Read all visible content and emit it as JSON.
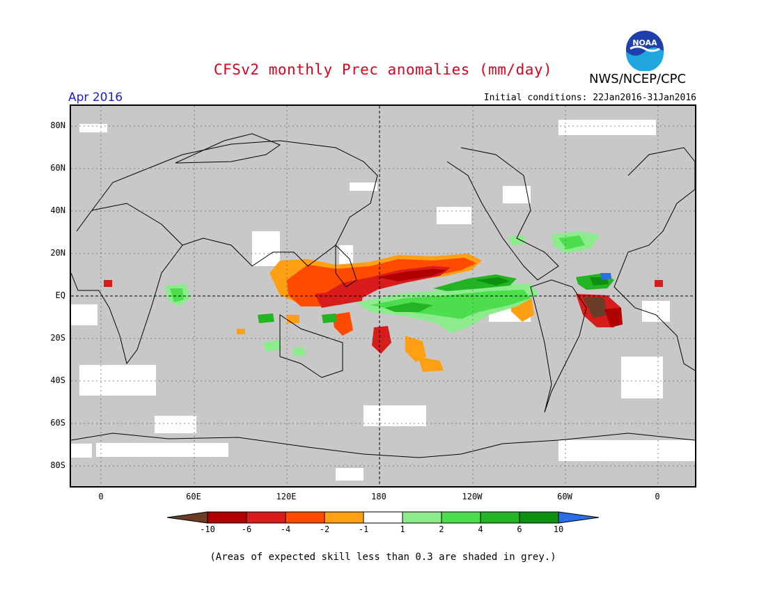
{
  "header": {
    "title": "CFSv2 monthly Prec anomalies (mm/day)",
    "org": "NWS/NCEP/CPC",
    "month": "Apr 2016",
    "initial_conditions": "Initial conditions: 22Jan2016-31Jan2016",
    "logo_text": "NOAA"
  },
  "map": {
    "lat_labels": [
      "80N",
      "60N",
      "40N",
      "20N",
      "EQ",
      "20S",
      "40S",
      "60S",
      "80S"
    ],
    "lon_labels": [
      "0",
      "60E",
      "120E",
      "180",
      "120W",
      "60W",
      "0"
    ]
  },
  "legend": {
    "labels": [
      "-10",
      "-6",
      "-4",
      "-2",
      "-1",
      "1",
      "2",
      "4",
      "6",
      "10"
    ],
    "colors": [
      "#6b3c26",
      "#b00000",
      "#d81c1c",
      "#ff4a00",
      "#ffa014",
      "#ffffff",
      "#8ceb8c",
      "#4dde4d",
      "#22b422",
      "#109010",
      "#2b6fe8"
    ]
  },
  "footnote": "(Areas of expected skill less than 0.3 are shaded in grey.)"
}
